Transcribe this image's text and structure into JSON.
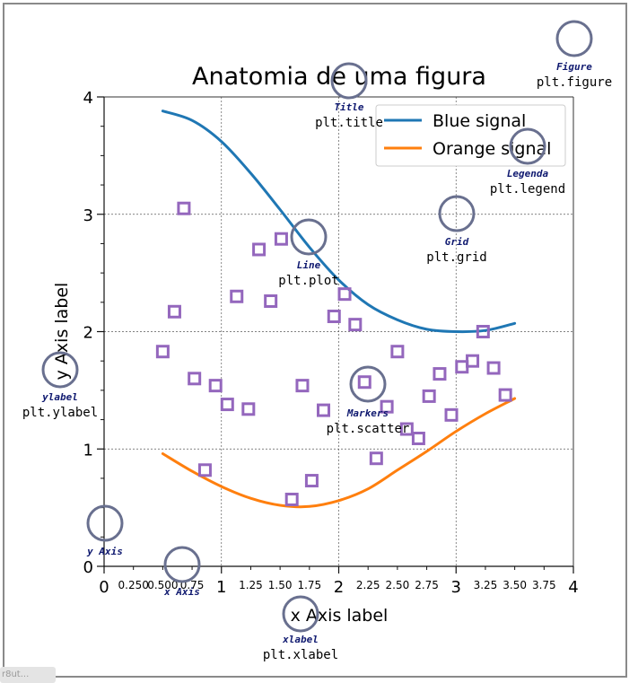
{
  "chart_data": {
    "type": "line",
    "title": "Anatomia de uma figura",
    "xlabel": "x Axis label",
    "ylabel": "y Axis label",
    "xlim": [
      0,
      4
    ],
    "ylim": [
      0,
      4
    ],
    "grid": true,
    "legend_position": "top-right",
    "major_ticks_x": [
      "0",
      "1",
      "2",
      "3",
      "4"
    ],
    "minor_ticks_x": [
      "0.250",
      "0.500",
      "0.75",
      "1.25",
      "1.50",
      "1.75",
      "2.25",
      "2.50",
      "2.75",
      "3.25",
      "3.50",
      "3.75"
    ],
    "major_ticks_y": [
      "0",
      "1",
      "2",
      "3",
      "4"
    ],
    "series": [
      {
        "name": "Blue signal",
        "kind": "line",
        "color": "#1f77b4",
        "points": [
          [
            0.5,
            3.88
          ],
          [
            0.75,
            3.8
          ],
          [
            1.0,
            3.62
          ],
          [
            1.25,
            3.35
          ],
          [
            1.5,
            3.04
          ],
          [
            1.75,
            2.72
          ],
          [
            2.0,
            2.44
          ],
          [
            2.25,
            2.23
          ],
          [
            2.5,
            2.1
          ],
          [
            2.75,
            2.02
          ],
          [
            3.0,
            2.0
          ],
          [
            3.25,
            2.01
          ],
          [
            3.5,
            2.07
          ]
        ]
      },
      {
        "name": "Orange signal",
        "kind": "line",
        "color": "#ff7f0e",
        "points": [
          [
            0.5,
            0.96
          ],
          [
            0.75,
            0.81
          ],
          [
            1.0,
            0.68
          ],
          [
            1.25,
            0.58
          ],
          [
            1.5,
            0.52
          ],
          [
            1.75,
            0.51
          ],
          [
            2.0,
            0.56
          ],
          [
            2.25,
            0.66
          ],
          [
            2.5,
            0.82
          ],
          [
            2.75,
            0.98
          ],
          [
            3.0,
            1.15
          ],
          [
            3.25,
            1.3
          ],
          [
            3.5,
            1.43
          ]
        ]
      },
      {
        "kind": "scatter",
        "marker": "square",
        "color": "#9467bd",
        "points": [
          [
            0.5,
            1.83
          ],
          [
            0.6,
            2.17
          ],
          [
            0.68,
            3.05
          ],
          [
            0.77,
            1.6
          ],
          [
            0.86,
            0.82
          ],
          [
            0.95,
            1.54
          ],
          [
            1.05,
            1.38
          ],
          [
            1.13,
            2.3
          ],
          [
            1.23,
            1.34
          ],
          [
            1.32,
            2.7
          ],
          [
            1.42,
            2.26
          ],
          [
            1.51,
            2.79
          ],
          [
            1.6,
            0.57
          ],
          [
            1.69,
            1.54
          ],
          [
            1.77,
            0.73
          ],
          [
            1.87,
            1.33
          ],
          [
            1.96,
            2.13
          ],
          [
            2.05,
            2.32
          ],
          [
            2.14,
            2.06
          ],
          [
            2.22,
            1.57
          ],
          [
            2.32,
            0.92
          ],
          [
            2.41,
            1.36
          ],
          [
            2.5,
            1.83
          ],
          [
            2.58,
            1.17
          ],
          [
            2.68,
            1.09
          ],
          [
            2.77,
            1.45
          ],
          [
            2.86,
            1.64
          ],
          [
            2.96,
            1.29
          ],
          [
            3.05,
            1.7
          ],
          [
            3.14,
            1.75
          ],
          [
            3.23,
            2.0
          ],
          [
            3.32,
            1.69
          ],
          [
            3.42,
            1.46
          ]
        ]
      }
    ],
    "annotations": [
      {
        "name": "Figure",
        "code": "plt.figure"
      },
      {
        "name": "Title",
        "code": "plt.title"
      },
      {
        "name": "Legenda",
        "code": "plt.legend"
      },
      {
        "name": "Grid",
        "code": "plt.grid"
      },
      {
        "name": "Line",
        "code": "plt.plot"
      },
      {
        "name": "Markers",
        "code": "plt.scatter"
      },
      {
        "name": "ylabel",
        "code": "plt.ylabel"
      },
      {
        "name": "y Axis",
        "code": ""
      },
      {
        "name": "x Axis",
        "code": ""
      },
      {
        "name": "xlabel",
        "code": "plt.xlabel"
      }
    ],
    "colors": {
      "annotation_circle": "#69708f",
      "annotation_name": "#101a70",
      "grid": "#5a5a5a"
    }
  },
  "watermark": "r8ut..."
}
